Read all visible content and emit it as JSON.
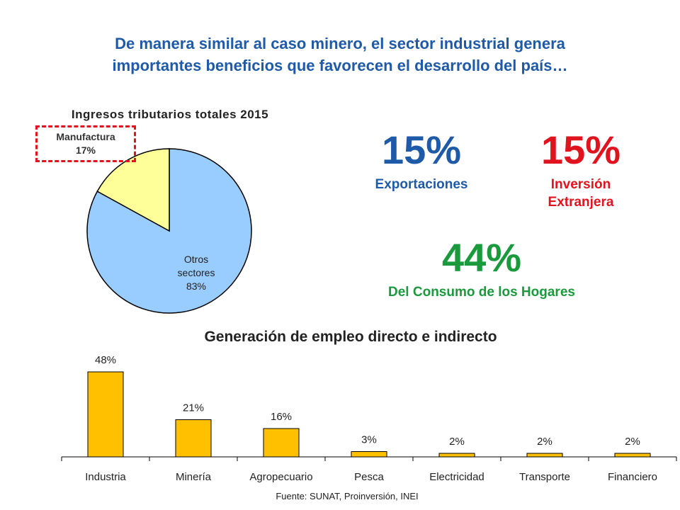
{
  "headline": {
    "line1": "De manera similar al caso minero, el sector industrial genera",
    "line2": "importantes beneficios que favorecen el desarrollo del país…"
  },
  "stats": {
    "exports": {
      "value": "15%",
      "label": "Exportaciones"
    },
    "fdi": {
      "value": "15%",
      "label_line1": "Inversión",
      "label_line2": "Extranjera"
    },
    "consumption": {
      "value": "44%",
      "label": "Del Consumo de los Hogares"
    }
  },
  "source": "Fuente: SUNAT, Proinversión, INEI",
  "colors": {
    "headline": "#1f5aa8",
    "exports": "#1f5aa8",
    "fdi": "#e0141e",
    "consumption": "#1a9a3c",
    "pie_manufactura": "#ffff99",
    "pie_otros": "#99ccff",
    "bar_fill": "#ffc000",
    "highlight_box": "#e0141e"
  },
  "chart_data": [
    {
      "type": "pie",
      "title": "Ingresos tributarios totales 2015",
      "slices": [
        {
          "name": "Manufactura",
          "label_line1": "Manufactura",
          "value": 17,
          "label": "17%",
          "color": "#ffff99"
        },
        {
          "name": "Otros sectores",
          "label_line1": "Otros",
          "label_line2": "sectores",
          "value": 83,
          "label": "83%",
          "color": "#99ccff"
        }
      ]
    },
    {
      "type": "bar",
      "title": "Generación de empleo directo e indirecto",
      "categories": [
        "Industria",
        "Minería",
        "Agropecuario",
        "Pesca",
        "Electricidad",
        "Transporte",
        "Financiero"
      ],
      "values": [
        48,
        21,
        16,
        3,
        2,
        2,
        2
      ],
      "labels": [
        "48%",
        "21%",
        "16%",
        "3%",
        "2%",
        "2%",
        "2%"
      ],
      "ylim": [
        0,
        48
      ],
      "grid": false,
      "color": "#ffc000"
    }
  ]
}
